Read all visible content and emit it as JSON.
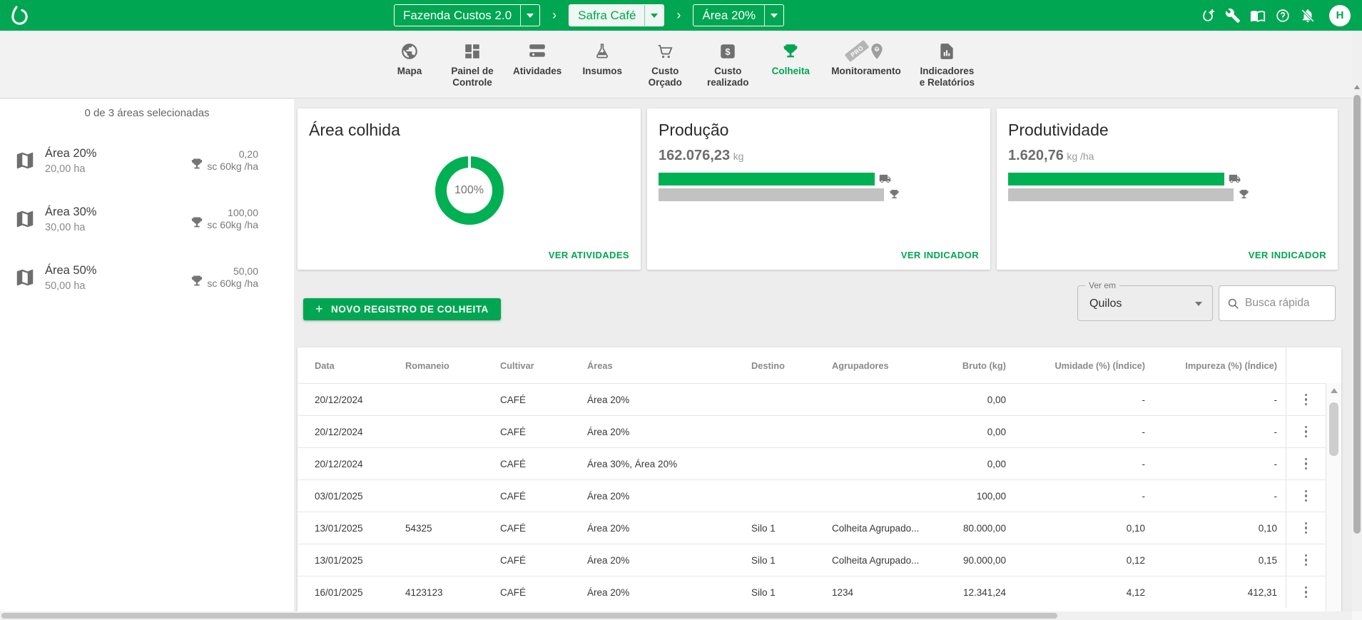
{
  "header": {
    "farm_selector": {
      "label": "Fazenda Custos 2.0"
    },
    "season_selector": {
      "label": "Safra Café"
    },
    "area_selector": {
      "label": "Área 20%"
    },
    "separator": "›",
    "avatar": "H",
    "icons": [
      "invite-user-icon",
      "tools-icon",
      "library-icon",
      "help-icon",
      "notifications-off-icon"
    ]
  },
  "nav": {
    "tabs": [
      {
        "id": "mapa",
        "label": "Mapa",
        "icon": "globe-icon",
        "active": false
      },
      {
        "id": "painel-de-controle",
        "label": "Painel de\nControle",
        "icon": "dashboard-icon",
        "active": false
      },
      {
        "id": "atividades",
        "label": "Atividades",
        "icon": "activities-icon",
        "active": false
      },
      {
        "id": "insumos",
        "label": "Insumos",
        "icon": "flask-icon",
        "active": false
      },
      {
        "id": "custo-orcado",
        "label": "Custo\nOrçado",
        "icon": "cart-icon",
        "active": false
      },
      {
        "id": "custo-realizado",
        "label": "Custo\nrealizado",
        "icon": "dollar-icon",
        "active": false
      },
      {
        "id": "colheita",
        "label": "Colheita",
        "icon": "trophy-icon",
        "active": true
      },
      {
        "id": "monitoramento",
        "label": "Monitoramento",
        "icon": "pin-icon",
        "active": false,
        "badge": "PRO"
      },
      {
        "id": "indicadores-e-relatorios",
        "label": "Indicadores\ne Relatórios",
        "icon": "report-icon",
        "active": false
      }
    ]
  },
  "sidebar": {
    "summary": "0 de 3 áreas selecionadas",
    "areas": [
      {
        "name": "Área 20%",
        "size": "20,00 ha",
        "value": "0,20",
        "unit": "sc 60kg /ha"
      },
      {
        "name": "Área 30%",
        "size": "30,00 ha",
        "value": "100,00",
        "unit": "sc 60kg /ha"
      },
      {
        "name": "Área 50%",
        "size": "50,00 ha",
        "value": "50,00",
        "unit": "sc 60kg /ha"
      }
    ]
  },
  "cards": {
    "harvested_area": {
      "title": "Área colhida",
      "percent": 100,
      "percent_label": "100%",
      "link": "VER ATIVIDADES"
    },
    "production": {
      "title": "Produção",
      "value": "162.076,23",
      "unit": "kg",
      "actual_pct": 96,
      "target_pct": 100,
      "link": "VER INDICADOR"
    },
    "productivity": {
      "title": "Produtividade",
      "value": "1.620,76",
      "unit": "kg /ha",
      "actual_pct": 96,
      "target_pct": 100,
      "link": "VER INDICADOR"
    }
  },
  "toolbar": {
    "new_record_plus": "+",
    "new_record_label": "NOVO REGISTRO DE COLHEITA",
    "view_in_label": "Ver em",
    "view_in_value": "Quilos",
    "search_placeholder": "Busca rápida"
  },
  "table": {
    "columns": [
      "Data",
      "Romaneio",
      "Cultivar",
      "Áreas",
      "Destino",
      "Agrupadores",
      "Bruto (kg)",
      "Umidade (%) (Índice)",
      "Impureza (%) (Índice)"
    ],
    "rows": [
      [
        "20/12/2024",
        "",
        "CAFÉ",
        "Área 20%",
        "",
        "",
        "0,00",
        "-",
        "-"
      ],
      [
        "20/12/2024",
        "",
        "CAFÉ",
        "Área 20%",
        "",
        "",
        "0,00",
        "-",
        "-"
      ],
      [
        "20/12/2024",
        "",
        "CAFÉ",
        "Área 30%, Área 20%",
        "",
        "",
        "0,00",
        "-",
        "-"
      ],
      [
        "03/01/2025",
        "",
        "CAFÉ",
        "Área 20%",
        "",
        "",
        "100,00",
        "-",
        "-"
      ],
      [
        "13/01/2025",
        "54325",
        "CAFÉ",
        "Área 20%",
        "Silo 1",
        "Colheita Agrupado...",
        "80.000,00",
        "0,10",
        "0,10"
      ],
      [
        "13/01/2025",
        "",
        "CAFÉ",
        "Área 20%",
        "Silo 1",
        "Colheita Agrupado...",
        "90.000,00",
        "0,12",
        "0,15"
      ],
      [
        "16/01/2025",
        "4123123",
        "CAFÉ",
        "Área 20%",
        "Silo 1",
        "1234",
        "12.341,24",
        "4,12",
        "412,31"
      ]
    ]
  },
  "colors": {
    "brand_green": "#00a651",
    "chart_green": "#00b052",
    "goal_gray": "#c2c2c2"
  }
}
